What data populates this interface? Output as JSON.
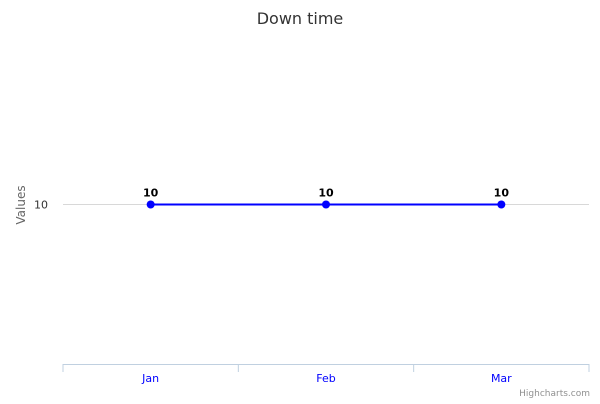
{
  "chart_data": {
    "type": "line",
    "title": "Down time",
    "xlabel": "",
    "ylabel": "Values",
    "categories": [
      "Jan",
      "Feb",
      "Mar"
    ],
    "series": [
      {
        "values": [
          10,
          10,
          10
        ],
        "color": "#0000ff",
        "data_labels": true
      }
    ],
    "y_ticks": [
      10
    ],
    "grid": true,
    "legend": "none",
    "credits": "Highcharts.com",
    "colors": {
      "axis_label": "#666666",
      "tick_label": "#333333",
      "category_label": "#0000ff",
      "gridline": "#d8d8d8",
      "axis_line": "#c0d0e0",
      "credits": "#909090",
      "title": "#333333"
    }
  }
}
